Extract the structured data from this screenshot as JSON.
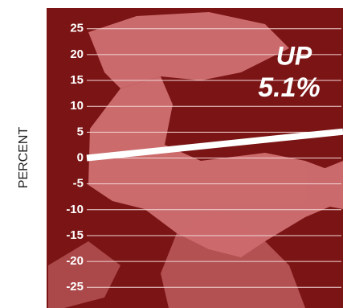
{
  "chart_data": {
    "type": "line",
    "y_label": "PERCENT",
    "annotations": [
      "UP",
      "5.1%"
    ],
    "categories": [
      null,
      null
    ],
    "series": [
      {
        "color": "#ffffff",
        "values": [
          0,
          5.1
        ]
      }
    ],
    "ylim": [
      -29,
      29
    ],
    "yticks": [
      25,
      20,
      15,
      10,
      5,
      0,
      -5,
      -10,
      -15,
      -20,
      -25
    ],
    "grid": true
  }
}
